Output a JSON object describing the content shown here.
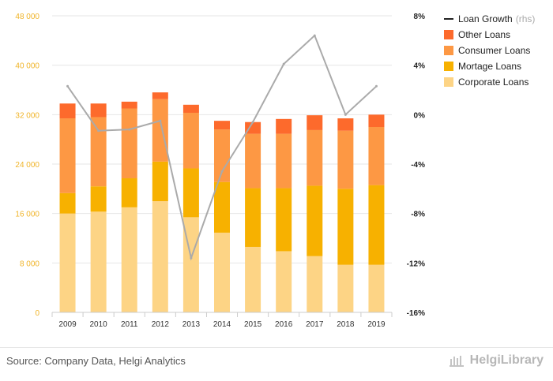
{
  "chart_data": {
    "type": "bar",
    "stacked": true,
    "categories": [
      "2009",
      "2010",
      "2011",
      "2012",
      "2013",
      "2014",
      "2015",
      "2016",
      "2017",
      "2018",
      "2019"
    ],
    "series": [
      {
        "name": "Corporate Loans",
        "color": "#fdd485",
        "values": [
          16000,
          16300,
          17000,
          18000,
          15400,
          12900,
          10600,
          9900,
          9100,
          7700,
          7700
        ]
      },
      {
        "name": "Mortage Loans",
        "color": "#f7b100",
        "values": [
          3300,
          4100,
          4700,
          6400,
          7900,
          8200,
          9500,
          10200,
          11400,
          12300,
          12900
        ]
      },
      {
        "name": "Consumer Loans",
        "color": "#fd9844",
        "values": [
          12100,
          11200,
          11300,
          10100,
          9000,
          8500,
          8800,
          8800,
          9000,
          9400,
          9400
        ]
      },
      {
        "name": "Other Loans",
        "color": "#fd6a2c",
        "values": [
          2400,
          2200,
          1100,
          1100,
          1300,
          1400,
          1900,
          2400,
          2400,
          2000,
          2000
        ]
      }
    ],
    "line_series": {
      "name": "Loan Growth",
      "name_suffix": "(rhs)",
      "color": "#aaaaaa",
      "axis": "right",
      "values": [
        2.3,
        -1.3,
        -1.2,
        -0.5,
        -11.6,
        -4.6,
        -0.6,
        4.1,
        6.4,
        0.0,
        2.3
      ]
    },
    "ylim": [
      0,
      48000
    ],
    "y_ticks": [
      "0",
      "8 000",
      "16 000",
      "24 000",
      "32 000",
      "40 000",
      "48 000"
    ],
    "y2lim": [
      -16,
      8
    ],
    "y2_ticks": [
      "-16%",
      "-12%",
      "-8%",
      "-4%",
      "0%",
      "4%",
      "8%"
    ],
    "legend_position": "right",
    "grid": true
  },
  "legend": {
    "line_label": "Loan Growth",
    "line_suffix": "(rhs)",
    "items": [
      "Other Loans",
      "Consumer Loans",
      "Mortage Loans",
      "Corporate Loans"
    ]
  },
  "footer": {
    "source": "Source: Company Data, Helgi Analytics",
    "brand": "HelgiLibrary"
  }
}
